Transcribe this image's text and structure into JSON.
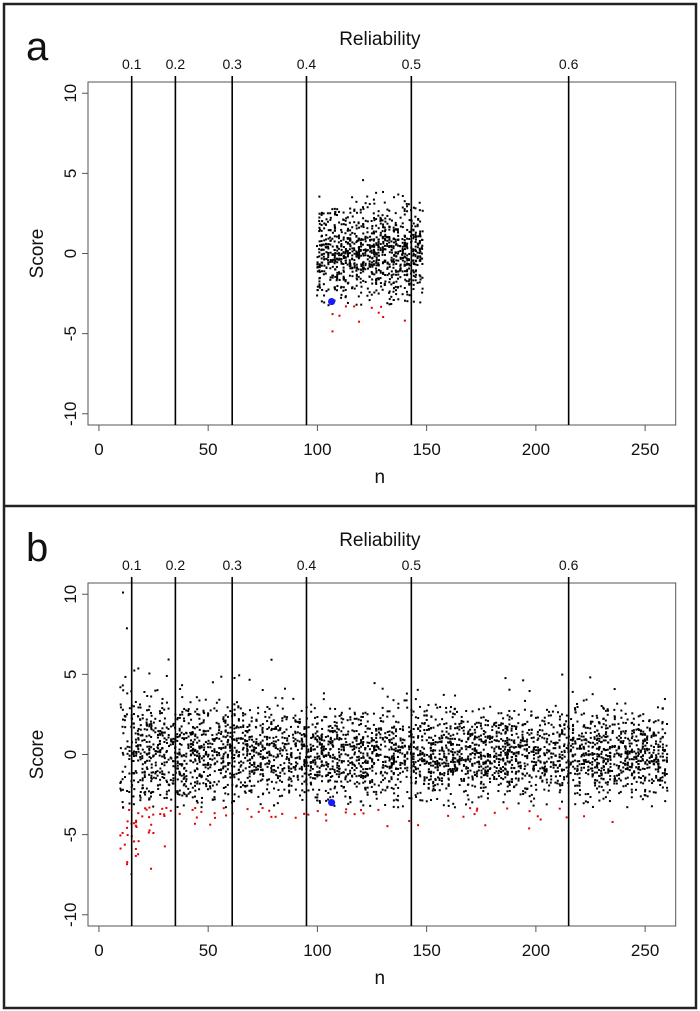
{
  "chart_data": [
    {
      "type": "scatter",
      "panel_label": "a",
      "top_axis_title": "Reliability",
      "xlabel": "n",
      "ylabel": "Score",
      "xlim": [
        -5,
        264
      ],
      "ylim": [
        -10.7,
        10.7
      ],
      "xticks": [
        "0",
        "50",
        "100",
        "150",
        "200",
        "250"
      ],
      "xtick_values": [
        0,
        50,
        100,
        150,
        200,
        250
      ],
      "yticks": [
        "-10",
        "-5",
        "0",
        "5",
        "10"
      ],
      "ytick_values": [
        -10,
        -5,
        0,
        5,
        10
      ],
      "reliability_lines": [
        {
          "label": "0.1",
          "n": 15
        },
        {
          "label": "0.2",
          "n": 35
        },
        {
          "label": "0.3",
          "n": 61
        },
        {
          "label": "0.4",
          "n": 95
        },
        {
          "label": "0.5",
          "n": 143
        },
        {
          "label": "0.6",
          "n": 215
        }
      ],
      "point_cloud": {
        "n_min": 100,
        "n_max": 148,
        "count": 1000,
        "mean": 0,
        "sd_base": 1.5,
        "sd_small_n": 0,
        "seed": 7
      },
      "outlier_threshold": -3.3,
      "highlight_point": {
        "n": 106.5,
        "score": -3.0
      },
      "colors": {
        "points": "#000000",
        "outliers": "#e00000",
        "highlight": "#1a1aff",
        "lines": "#000000"
      }
    },
    {
      "type": "scatter",
      "panel_label": "b",
      "top_axis_title": "Reliability",
      "xlabel": "n",
      "ylabel": "Score",
      "xlim": [
        -5,
        264
      ],
      "ylim": [
        -10.7,
        10.7
      ],
      "xticks": [
        "0",
        "50",
        "100",
        "150",
        "200",
        "250"
      ],
      "xtick_values": [
        0,
        50,
        100,
        150,
        200,
        250
      ],
      "yticks": [
        "-10",
        "-5",
        "0",
        "5",
        "10"
      ],
      "ytick_values": [
        -10,
        -5,
        0,
        5,
        10
      ],
      "reliability_lines": [
        {
          "label": "0.1",
          "n": 15
        },
        {
          "label": "0.2",
          "n": 35
        },
        {
          "label": "0.3",
          "n": 61
        },
        {
          "label": "0.4",
          "n": 95
        },
        {
          "label": "0.5",
          "n": 143
        },
        {
          "label": "0.6",
          "n": 215
        }
      ],
      "point_cloud": {
        "n_min": 10,
        "n_max": 260,
        "count": 3800,
        "mean": 0,
        "sd_base": 1.35,
        "sd_small_n": 18,
        "seed": 11
      },
      "outlier_threshold": -3.3,
      "highlight_point": {
        "n": 106.5,
        "score": -3.0
      },
      "colors": {
        "points": "#000000",
        "outliers": "#e00000",
        "highlight": "#1a1aff",
        "lines": "#000000"
      }
    }
  ]
}
